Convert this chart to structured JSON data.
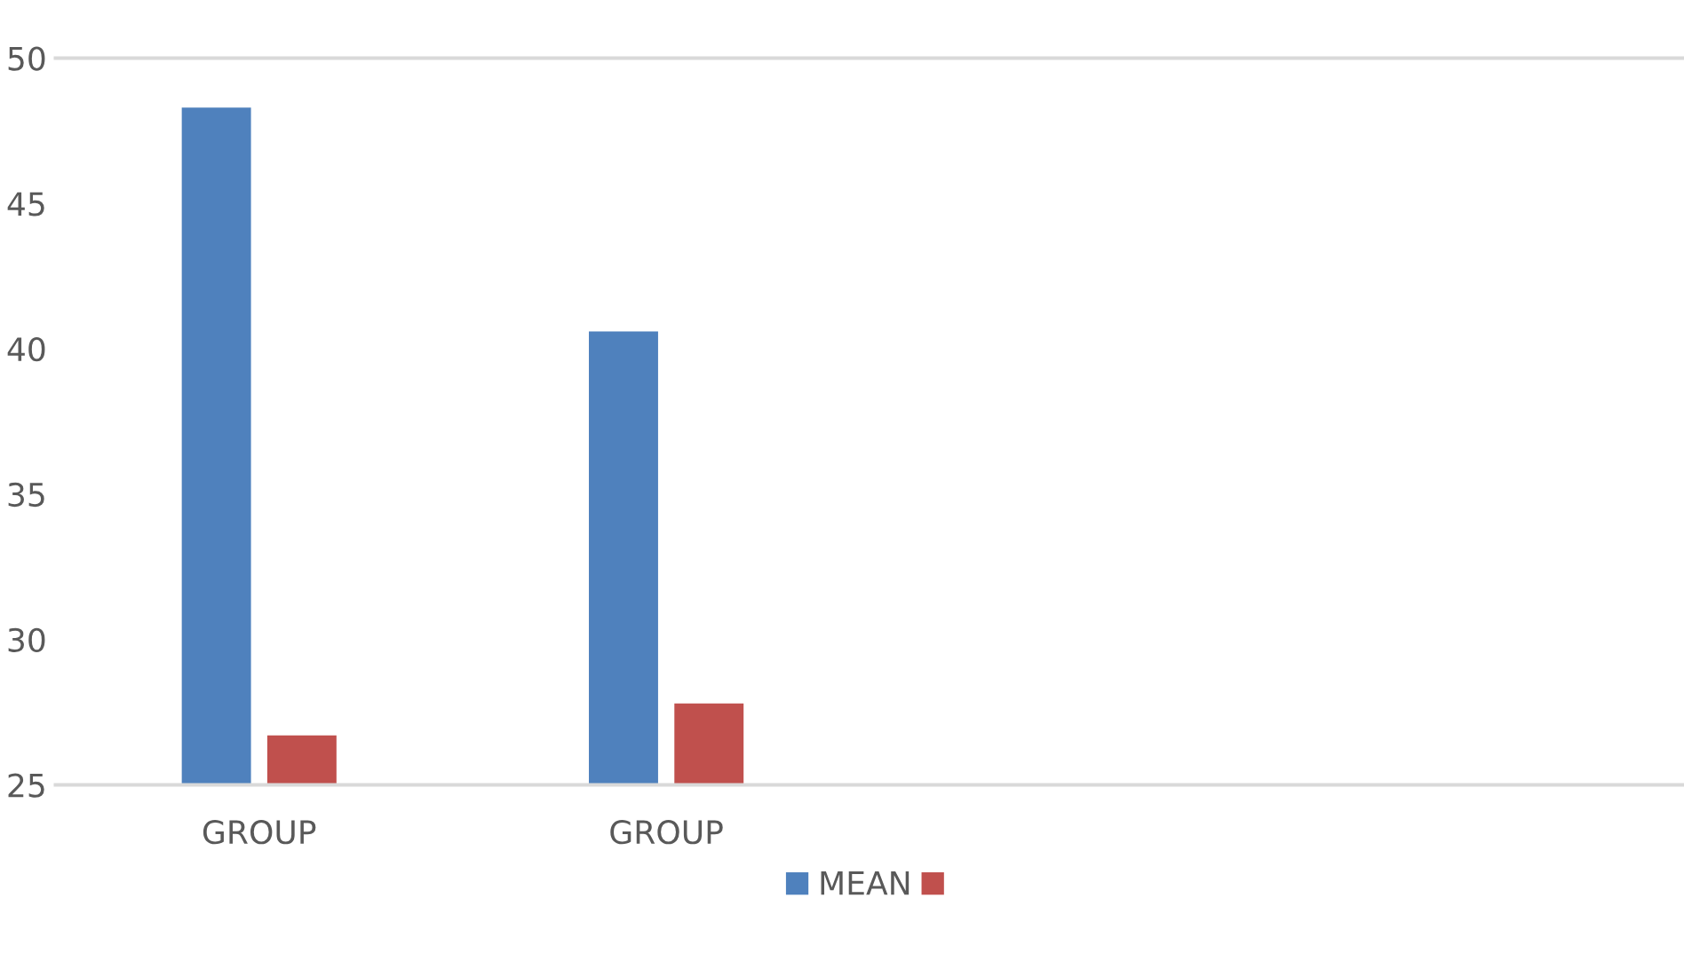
{
  "chart_data": {
    "type": "bar",
    "categories": [
      "GROUP",
      "GROUP",
      null,
      null
    ],
    "series": [
      {
        "name": "MEAN",
        "color": "#4f81bd",
        "values": [
          48.3,
          40.6,
          null,
          null
        ]
      },
      {
        "color": "#c0504d",
        "values": [
          26.7,
          27.8,
          null,
          null
        ]
      }
    ],
    "ylim": [
      25,
      50
    ],
    "yticks": [
      50,
      45,
      40,
      35,
      30,
      25
    ],
    "grid": false,
    "legend": "bottom"
  }
}
